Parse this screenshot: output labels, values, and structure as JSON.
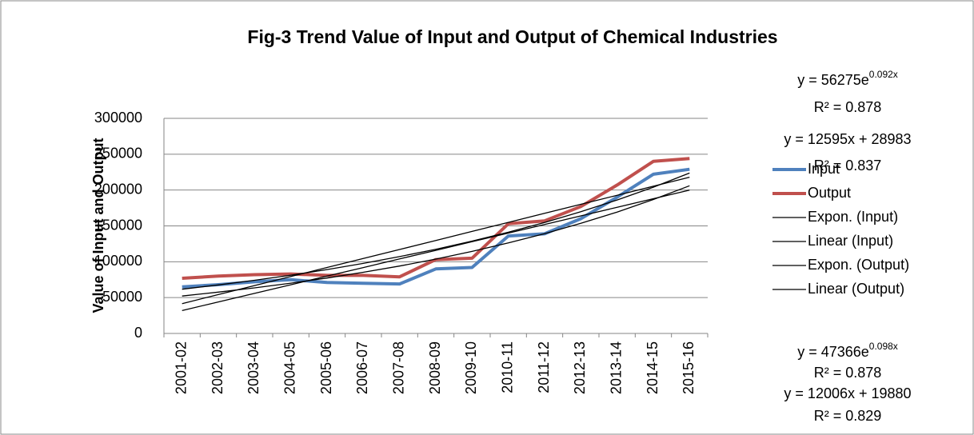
{
  "chart_data": {
    "type": "line",
    "title": "Fig-3 Trend Value of Input and Output of Chemical Industries",
    "y_label": "Value of Input and Output",
    "categories": [
      "2001-02",
      "2002-03",
      "2003-04",
      "2004-05",
      "2005-06",
      "2006-07",
      "2007-08",
      "2008-09",
      "2009-10",
      "2010-11",
      "2011-12",
      "2012-13",
      "2013-14",
      "2014-15",
      "2015-16"
    ],
    "series": [
      {
        "name": "Input",
        "color": "#4f81bd",
        "values": [
          65000,
          68000,
          72000,
          75000,
          71000,
          70000,
          69000,
          90000,
          92000,
          136000,
          139000,
          160000,
          190000,
          222000,
          229000
        ]
      },
      {
        "name": "Output",
        "color": "#c0504d",
        "values": [
          77000,
          80000,
          82000,
          83000,
          81000,
          81000,
          79000,
          103000,
          105000,
          153000,
          157000,
          177000,
          207000,
          240000,
          244000
        ]
      }
    ],
    "trendlines": [
      {
        "name": "Expon. (Input)",
        "kind": "exponential",
        "a": 47366,
        "b": 0.098,
        "equation": {
          "base": "y = 47366e",
          "exponent": "0.098x"
        },
        "r2": "R² = 0.878"
      },
      {
        "name": "Linear (Input)",
        "kind": "linear",
        "a": 12006,
        "b": 19880,
        "equation": {
          "base": "y = 12006x + 19880"
        },
        "r2": "R² = 0.829"
      },
      {
        "name": "Expon. (Output)",
        "kind": "exponential",
        "a": 56275,
        "b": 0.092,
        "equation": {
          "base": "y = 56275e",
          "exponent": "0.092x"
        },
        "r2": "R² = 0.878"
      },
      {
        "name": "Linear (Output)",
        "kind": "linear",
        "a": 12595,
        "b": 28983,
        "equation": {
          "base": "y = 12595x + 28983"
        },
        "r2": "R² = 0.837"
      }
    ],
    "trend_color": "#000000",
    "ylim": [
      0,
      300000
    ],
    "yticks": [
      0,
      50000,
      100000,
      150000,
      200000,
      250000,
      300000
    ],
    "grid": true,
    "legend": "right"
  }
}
